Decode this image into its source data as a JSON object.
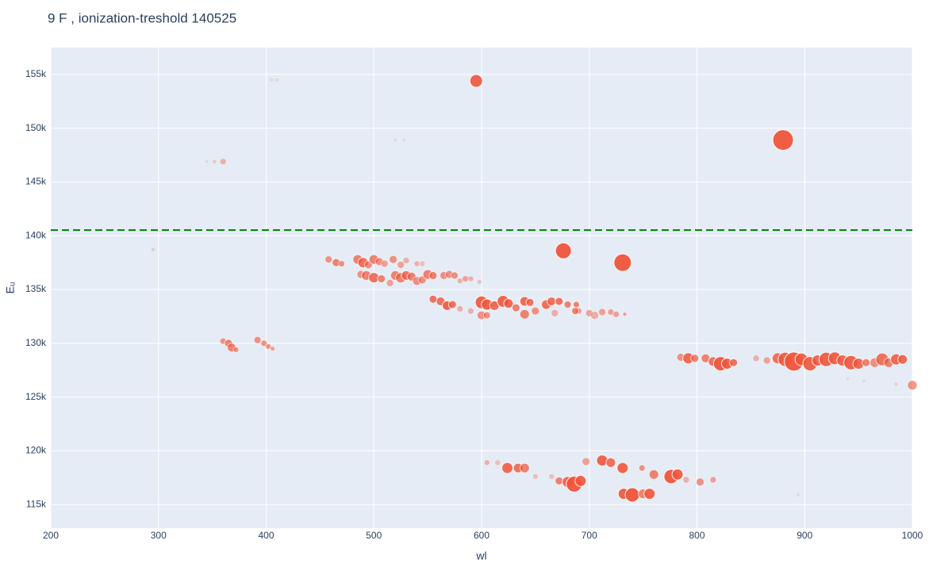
{
  "chart_data": {
    "type": "scatter",
    "title": "9 F , ionization-treshold 140525",
    "x_label": "wl",
    "y_label": "Eᵤ",
    "xlim": [
      200,
      1000
    ],
    "xticks": [
      200,
      300,
      400,
      500,
      600,
      700,
      800,
      900,
      1000
    ],
    "ylim": [
      112800,
      157500
    ],
    "yticks": [
      {
        "value": 115000,
        "label": "115k"
      },
      {
        "value": 120000,
        "label": "120k"
      },
      {
        "value": 125000,
        "label": "125k"
      },
      {
        "value": 130000,
        "label": "130k"
      },
      {
        "value": 135000,
        "label": "135k"
      },
      {
        "value": 140000,
        "label": "140k"
      },
      {
        "value": 145000,
        "label": "145k"
      },
      {
        "value": 150000,
        "label": "150k"
      },
      {
        "value": 155000,
        "label": "155k"
      }
    ],
    "grid": true,
    "color": "#ef553b",
    "threshold": 140525,
    "threshold_color": "#008000",
    "x": [
      595,
      405,
      410,
      880,
      520,
      528,
      360,
      352,
      345,
      676,
      731,
      295,
      458,
      465,
      470,
      485,
      490,
      495,
      500,
      505,
      510,
      518,
      525,
      530,
      540,
      545,
      488,
      493,
      500,
      507,
      515,
      520,
      525,
      530,
      535,
      540,
      545,
      550,
      555,
      565,
      570,
      575,
      580,
      585,
      590,
      598,
      555,
      562,
      568,
      573,
      580,
      590,
      600,
      605,
      612,
      620,
      625,
      632,
      640,
      645,
      600,
      605,
      640,
      650,
      660,
      665,
      672,
      680,
      688,
      690,
      700,
      705,
      712,
      720,
      725,
      733,
      668,
      687,
      360,
      365,
      368,
      372,
      392,
      398,
      402,
      406,
      785,
      792,
      798,
      808,
      815,
      822,
      828,
      834,
      855,
      865,
      875,
      882,
      890,
      897,
      905,
      912,
      920,
      928,
      935,
      943,
      950,
      957,
      965,
      972,
      978,
      985,
      991,
      1000,
      940,
      955,
      985,
      605,
      615,
      624,
      634,
      640,
      650,
      665,
      672,
      680,
      686,
      692,
      697,
      712,
      720,
      731,
      732,
      740,
      750,
      749,
      756,
      760,
      776,
      782,
      790,
      803,
      815,
      894
    ],
    "y": [
      154400,
      154500,
      154500,
      148900,
      148900,
      148900,
      146900,
      146900,
      146900,
      138600,
      137500,
      138700,
      137800,
      137500,
      137400,
      137800,
      137500,
      137300,
      137800,
      137600,
      137400,
      137800,
      137300,
      137700,
      137400,
      137400,
      136400,
      136300,
      136100,
      136000,
      135600,
      136300,
      136100,
      136300,
      136200,
      135800,
      135900,
      136400,
      136300,
      136300,
      136400,
      136300,
      135800,
      136000,
      136000,
      135700,
      134100,
      133900,
      133500,
      133600,
      133200,
      133000,
      133800,
      133600,
      133500,
      133900,
      133700,
      133300,
      133900,
      133800,
      132600,
      132600,
      132700,
      133000,
      133600,
      133900,
      133900,
      133600,
      133600,
      133000,
      132800,
      132600,
      132900,
      132900,
      132700,
      132700,
      132800,
      133000,
      130200,
      130000,
      129600,
      129400,
      130300,
      130000,
      129700,
      129500,
      128700,
      128600,
      128600,
      128600,
      128300,
      128100,
      128100,
      128200,
      128600,
      128400,
      128600,
      128500,
      128300,
      128500,
      128100,
      128400,
      128500,
      128600,
      128400,
      128200,
      128100,
      128200,
      128200,
      128500,
      128200,
      128500,
      128500,
      126100,
      126700,
      126500,
      126200,
      118900,
      118900,
      118400,
      118400,
      118400,
      117600,
      117600,
      117200,
      117100,
      116900,
      117200,
      119000,
      119100,
      118900,
      118400,
      116000,
      115900,
      116000,
      118400,
      116000,
      117800,
      117600,
      117800,
      117300,
      117100,
      117300,
      115900
    ],
    "sizes": [
      16,
      5,
      5,
      26,
      4,
      4,
      8,
      5,
      4,
      20,
      22,
      5,
      9,
      10,
      8,
      12,
      13,
      10,
      12,
      10,
      9,
      10,
      9,
      8,
      7,
      7,
      10,
      12,
      13,
      10,
      9,
      12,
      13,
      12,
      11,
      11,
      10,
      12,
      10,
      10,
      10,
      9,
      7,
      8,
      7,
      6,
      10,
      11,
      12,
      10,
      8,
      8,
      16,
      14,
      12,
      15,
      12,
      10,
      12,
      10,
      11,
      9,
      12,
      10,
      12,
      11,
      10,
      9,
      8,
      8,
      9,
      10,
      9,
      8,
      8,
      5,
      9,
      9,
      8,
      10,
      11,
      7,
      9,
      8,
      7,
      6,
      10,
      14,
      10,
      11,
      12,
      18,
      14,
      10,
      8,
      9,
      14,
      18,
      24,
      16,
      18,
      14,
      18,
      16,
      14,
      18,
      14,
      10,
      12,
      16,
      12,
      14,
      12,
      12,
      4,
      4,
      5,
      7,
      7,
      14,
      12,
      12,
      7,
      7,
      10,
      14,
      20,
      14,
      10,
      14,
      12,
      14,
      14,
      18,
      12,
      8,
      14,
      12,
      18,
      14,
      8,
      10,
      8,
      4
    ],
    "opacities": [
      0.9,
      0.15,
      0.15,
      0.95,
      0.15,
      0.15,
      0.4,
      0.25,
      0.15,
      0.95,
      0.95,
      0.2,
      0.6,
      0.7,
      0.6,
      0.7,
      0.8,
      0.6,
      0.7,
      0.6,
      0.5,
      0.6,
      0.5,
      0.4,
      0.4,
      0.3,
      0.6,
      0.7,
      0.8,
      0.7,
      0.5,
      0.7,
      0.7,
      0.8,
      0.7,
      0.6,
      0.6,
      0.7,
      0.7,
      0.6,
      0.6,
      0.6,
      0.4,
      0.5,
      0.4,
      0.3,
      0.8,
      0.8,
      0.9,
      0.8,
      0.4,
      0.4,
      0.9,
      0.9,
      0.85,
      0.9,
      0.85,
      0.7,
      0.85,
      0.8,
      0.6,
      0.6,
      0.7,
      0.6,
      0.8,
      0.8,
      0.8,
      0.7,
      0.7,
      0.6,
      0.5,
      0.4,
      0.5,
      0.5,
      0.5,
      0.5,
      0.4,
      0.7,
      0.6,
      0.7,
      0.7,
      0.6,
      0.6,
      0.6,
      0.6,
      0.5,
      0.6,
      0.85,
      0.7,
      0.7,
      0.8,
      0.95,
      0.9,
      0.8,
      0.4,
      0.5,
      0.8,
      0.9,
      0.95,
      0.9,
      0.9,
      0.85,
      0.9,
      0.9,
      0.85,
      0.9,
      0.85,
      0.7,
      0.6,
      0.8,
      0.7,
      0.85,
      0.85,
      0.6,
      0.15,
      0.15,
      0.2,
      0.4,
      0.3,
      0.85,
      0.8,
      0.7,
      0.3,
      0.3,
      0.7,
      0.85,
      0.95,
      0.9,
      0.5,
      0.9,
      0.8,
      0.9,
      0.9,
      0.95,
      0.7,
      0.6,
      0.9,
      0.7,
      0.95,
      0.9,
      0.4,
      0.6,
      0.5,
      0.15
    ]
  }
}
